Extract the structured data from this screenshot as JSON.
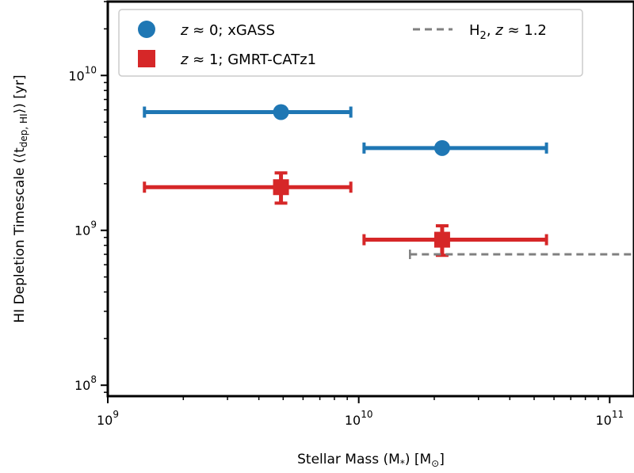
{
  "chart_data": {
    "type": "scatter",
    "xscale": "log",
    "yscale": "log",
    "xlim": [
      1000000000.0,
      125000000000.0
    ],
    "ylim": [
      85000000.0,
      30000000000.0
    ],
    "xlabel": "Stellar Mass (M",
    "xlabel_sub": "*",
    "xlabel_tail": ") [M",
    "xlabel_sun": "⊙",
    "xlabel_end": "]",
    "ylabel": "HI Depletion Timescale (⟨t",
    "ylabel_sub": "dep, HI",
    "ylabel_tail": "⟩) [yr]",
    "x_ticks": [
      {
        "value": 1000000000.0,
        "base": "10",
        "exp": "9"
      },
      {
        "value": 10000000000.0,
        "base": "10",
        "exp": "10"
      },
      {
        "value": 100000000000.0,
        "base": "10",
        "exp": "11"
      }
    ],
    "y_ticks": [
      {
        "value": 100000000.0,
        "base": "10",
        "exp": "8"
      },
      {
        "value": 1000000000.0,
        "base": "10",
        "exp": "9"
      },
      {
        "value": 10000000000.0,
        "base": "10",
        "exp": "10"
      }
    ],
    "series": [
      {
        "name": "z ≈ 0; xGASS",
        "label_z": "z",
        "label_rest": " ≈ 0; xGASS",
        "marker": "circle",
        "color": "#1f77b4",
        "points": [
          {
            "x": 4900000000.0,
            "y": 5800000000.0,
            "xerr": [
              1400000000.0,
              9300000000.0
            ],
            "yerr": null
          },
          {
            "x": 21500000000.0,
            "y": 3400000000.0,
            "xerr": [
              10500000000.0,
              56000000000.0
            ],
            "yerr": null
          }
        ]
      },
      {
        "name": "z ≈ 1; GMRT-CATz1",
        "label_z": "z",
        "label_rest": " ≈ 1; GMRT-CATz1",
        "marker": "square",
        "color": "#d62728",
        "points": [
          {
            "x": 4900000000.0,
            "y": 1900000000.0,
            "xerr": [
              1400000000.0,
              9300000000.0
            ],
            "yerr": [
              1500000000.0,
              2350000000.0
            ]
          },
          {
            "x": 21500000000.0,
            "y": 870000000.0,
            "xerr": [
              10500000000.0,
              56000000000.0
            ],
            "yerr": [
              690000000.0,
              1070000000.0
            ]
          }
        ]
      },
      {
        "name": "H2, z ≈ 1.2",
        "label_main": "H",
        "label_sub": "2",
        "label_z": "z",
        "label_rest": ", ",
        "label_end": " ≈ 1.2",
        "marker": "dashed-line",
        "color": "#808080",
        "line": {
          "x_start": 16000000000.0,
          "x_end": 125000000000.0,
          "y": 700000000.0
        }
      }
    ],
    "legend_position": "top"
  }
}
